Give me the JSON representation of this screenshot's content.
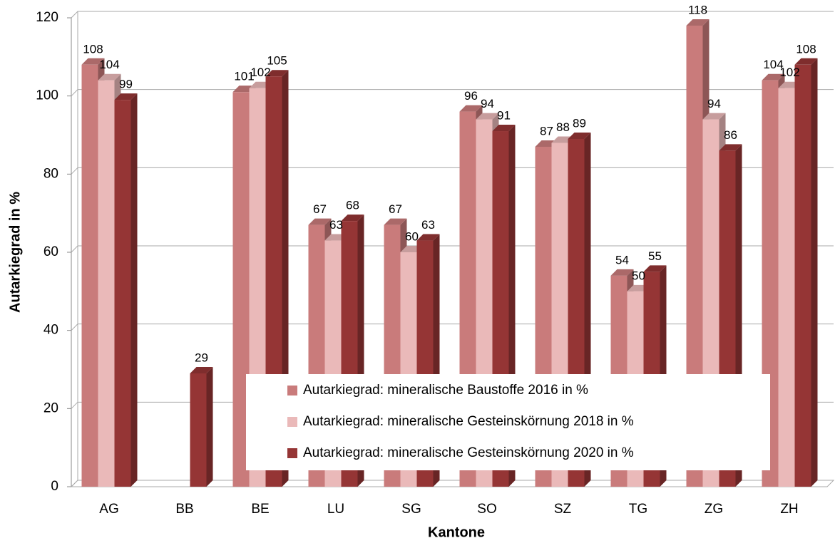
{
  "chart_data": {
    "type": "bar3d",
    "x_label": "Kantone",
    "y_label": "Autarkiegrad in %",
    "categories": [
      "AG",
      "BB",
      "BE",
      "LU",
      "SG",
      "SO",
      "SZ",
      "TG",
      "ZG",
      "ZH"
    ],
    "series": [
      {
        "name": "Autarkiegrad:  mineralische Baustoffe 2016 in %",
        "color": "#c97b7b",
        "values": [
          108,
          null,
          101,
          67,
          67,
          96,
          87,
          54,
          118,
          104
        ]
      },
      {
        "name": "Autarkiegrad:  mineralische Gesteinskörnung 2018 in %",
        "color": "#eab9b9",
        "values": [
          104,
          null,
          102,
          63,
          60,
          94,
          88,
          50,
          94,
          102
        ]
      },
      {
        "name": "Autarkiegrad:  mineralische Gesteinskörnung 2020 in %",
        "color": "#953535",
        "values": [
          99,
          29,
          105,
          68,
          63,
          91,
          89,
          55,
          86,
          108
        ]
      }
    ],
    "ylim": [
      0,
      120
    ],
    "yticks": [
      0,
      20,
      40,
      60,
      80,
      100,
      120
    ],
    "grid": true,
    "legend_position": "lower-right"
  }
}
